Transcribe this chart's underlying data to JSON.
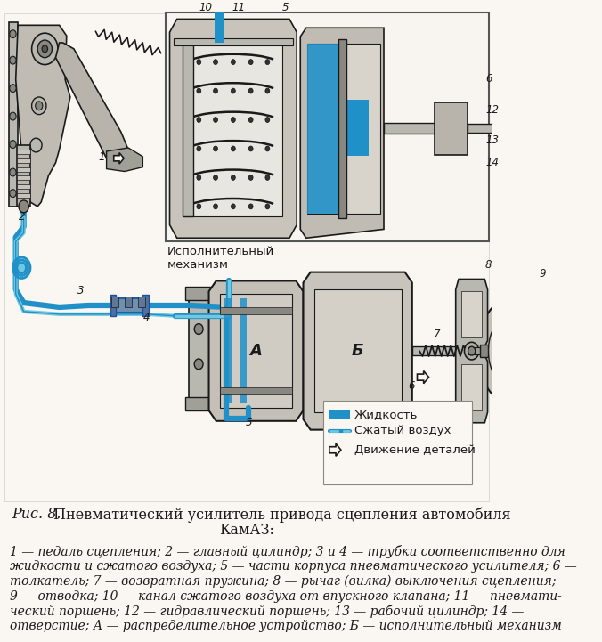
{
  "background_color": "#f5f0e8",
  "paper_color": "#faf7f2",
  "title_prefix": "Рис. 8.",
  "title_main": "Пневматический усилитель привода сцепления автомобиля",
  "title_sub": "КамАЗ:",
  "caption_lines": [
    "1 — педаль сцепления; 2 — главный цилиндр; 3 и 4 — трубки соответственно для",
    "жидкости и сжатого воздуха; 5 — части корпуса пневматического усилителя; 6 —",
    "толкатель; 7 — возвратная пружина; 8 — рычаг (вилка) выключения сцепления;",
    "9 — отводка; 10 — канал сжатого воздуха от впускного клапана; 11 — пневмати-",
    "ческий поршень; 12 — гидравлический поршень; 13 — рабочий цилиндр; 14 —",
    "отверстие; А — распределительное устройство; Б — исполнительный механизм"
  ],
  "liquid_color": "#2090c8",
  "air_color": "#70c8e0",
  "outline_color": "#1a1a1a",
  "metal_light": "#d8d8d0",
  "metal_mid": "#b8b8b0",
  "metal_dark": "#888880",
  "caption_fontsize": 10,
  "title_fontsize": 11.5
}
